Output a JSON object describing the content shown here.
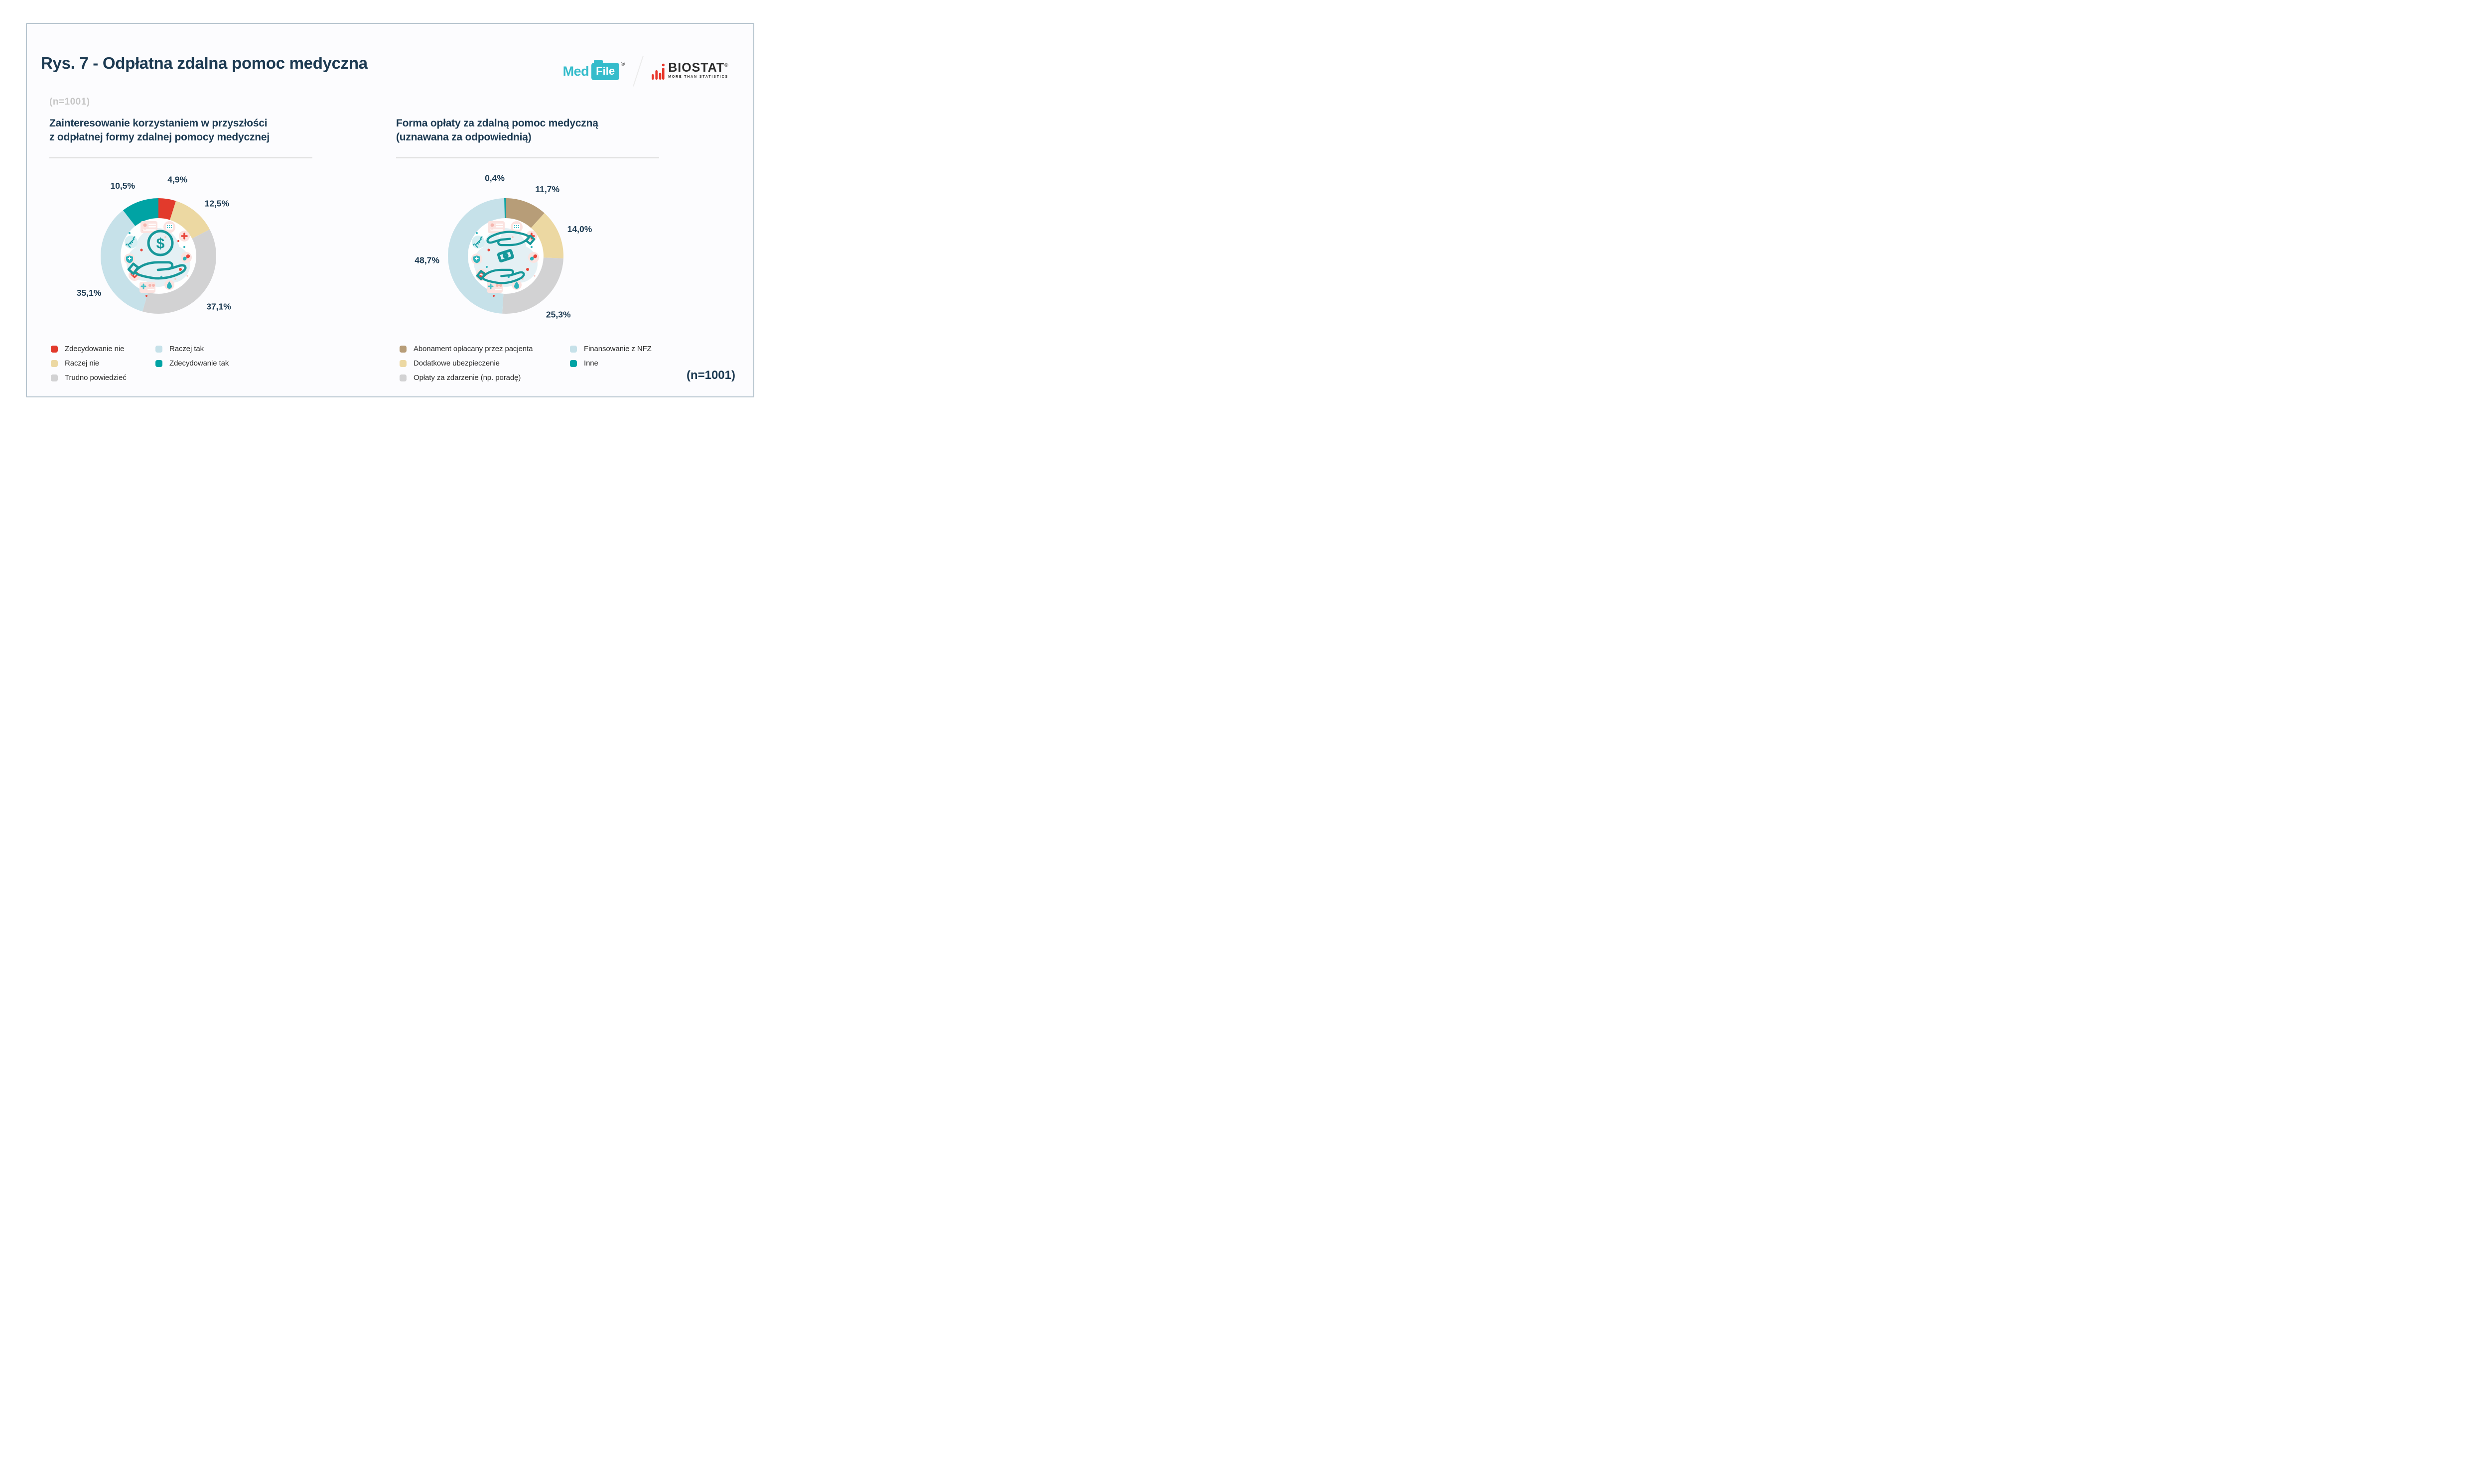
{
  "header": {
    "title": "Rys. 7 - Odpłatna zdalna pomoc medyczna",
    "sample_note_top": "(n=1001)",
    "sample_note_bottom": "(n=1001)"
  },
  "logos": {
    "medfile": {
      "med": "Med",
      "file": "File",
      "registered": "®",
      "brand_color": "#35bccb"
    },
    "biostat": {
      "name": "BIOSTAT",
      "tagline": "MORE THAN STATISTICS",
      "registered": "®",
      "bar_color": "#e8372c",
      "text_color": "#2d2d2d"
    }
  },
  "colors": {
    "card_border": "#b7c5cf",
    "card_background": "#fcfcfe",
    "heading_navy": "#1c3a52",
    "muted_note_gray": "#c6c6c6",
    "legend_text": "#2b2b2b",
    "divider": "#dcdcdc",
    "icon_teal": "#17989a"
  },
  "chart_data": [
    {
      "type": "pie",
      "variant": "donut",
      "title": "Zainteresowanie korzystaniem w przyszłości\nz odpłatnej formy zdalnej pomocy medycznej",
      "center_icon": "hand-holding-money",
      "direction": "clockwise",
      "start_angle_deg": 0,
      "legend_position": "bottom",
      "slices": [
        {
          "label": "Zdecydowanie nie",
          "value": 4.9,
          "display": "4,9%",
          "color": "#e23a2c",
          "label_angle": 14
        },
        {
          "label": "Raczej nie",
          "value": 12.5,
          "display": "12,5%",
          "color": "#ecd8a2",
          "label_angle": 48
        },
        {
          "label": "Trudno powiedzieć",
          "value": 37.1,
          "display": "37,1%",
          "color": "#d2d2d3",
          "label_angle": 130
        },
        {
          "label": "Raczej tak",
          "value": 35.1,
          "display": "35,1%",
          "color": "#c6e1e9",
          "label_angle": 242
        },
        {
          "label": "Zdecydowanie tak",
          "value": 10.5,
          "display": "10,5%",
          "color": "#00a3a4",
          "label_angle": 333
        }
      ],
      "legend_columns": [
        [
          0,
          1,
          2
        ],
        [
          3,
          4
        ]
      ]
    },
    {
      "type": "pie",
      "variant": "donut",
      "title": "Forma opłaty za zdalną pomoc medyczną\n(uznawana za odpowiednią)",
      "center_icon": "hands-exchanging-money",
      "direction": "clockwise",
      "start_angle_deg": 0,
      "legend_position": "bottom",
      "slices": [
        {
          "label": "Abonament opłacany przez pacjenta",
          "value": 11.7,
          "display": "11,7%",
          "color": "#b79d78",
          "label_angle": 32
        },
        {
          "label": "Dodatkowe ubezpieczenie",
          "value": 14.0,
          "display": "14,0%",
          "color": "#ecd8a2",
          "label_angle": 70
        },
        {
          "label": "Opłaty za zdarzenie (np. poradę)",
          "value": 25.3,
          "display": "25,3%",
          "color": "#d2d2d3",
          "label_angle": 138
        },
        {
          "label": "Finansowanie z NFZ",
          "value": 48.7,
          "display": "48,7%",
          "color": "#c6e1e9",
          "label_angle": 267
        },
        {
          "label": "Inne",
          "value": 0.4,
          "display": "0,4%",
          "color": "#00a3a4",
          "label_angle": 352
        }
      ],
      "legend_columns": [
        [
          0,
          1,
          2
        ],
        [
          3,
          4
        ]
      ]
    }
  ]
}
